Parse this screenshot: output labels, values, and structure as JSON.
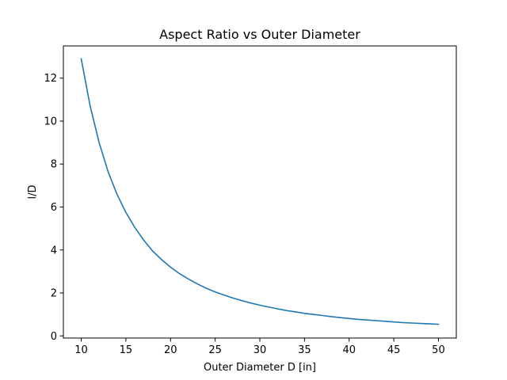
{
  "chart_data": {
    "type": "line",
    "title": "Aspect Ratio vs Outer Diameter",
    "xlabel": "Outer Diameter D [in]",
    "ylabel": "l/D",
    "xlim": [
      8,
      52
    ],
    "ylim": [
      -0.1,
      13.5
    ],
    "grid": false,
    "xticks": [
      10,
      15,
      20,
      25,
      30,
      35,
      40,
      45,
      50
    ],
    "yticks": [
      0,
      2,
      4,
      6,
      8,
      10,
      12
    ],
    "series": [
      {
        "color": "#1f77b4",
        "x": [
          10,
          11,
          12,
          13,
          14,
          15,
          16,
          17,
          18,
          19,
          20,
          21,
          22,
          23,
          24,
          25,
          26,
          27,
          28,
          29,
          30,
          31,
          32,
          33,
          34,
          35,
          36,
          37,
          38,
          39,
          40,
          41,
          42,
          43,
          44,
          45,
          46,
          47,
          48,
          49,
          50
        ],
        "y": [
          12.9,
          10.7,
          9.0,
          7.65,
          6.6,
          5.75,
          5.05,
          4.45,
          3.95,
          3.55,
          3.2,
          2.9,
          2.65,
          2.42,
          2.22,
          2.05,
          1.9,
          1.76,
          1.64,
          1.53,
          1.43,
          1.34,
          1.26,
          1.18,
          1.12,
          1.05,
          1.0,
          0.95,
          0.9,
          0.85,
          0.81,
          0.77,
          0.74,
          0.71,
          0.68,
          0.65,
          0.62,
          0.6,
          0.58,
          0.56,
          0.54
        ]
      }
    ]
  }
}
